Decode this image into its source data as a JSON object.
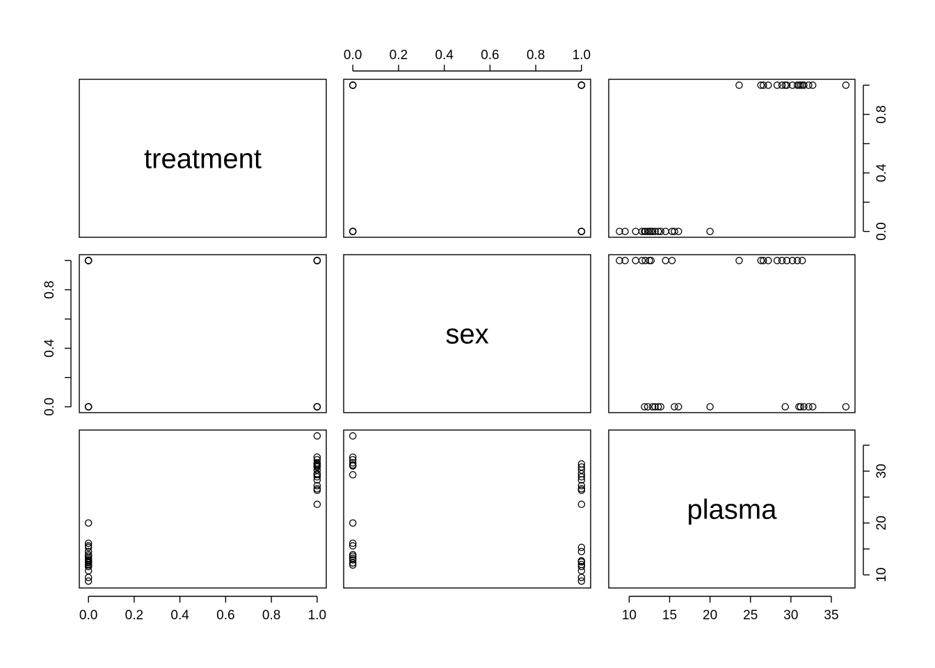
{
  "chart_data": {
    "type": "scatter",
    "title": "",
    "variables": [
      "treatment",
      "sex",
      "plasma"
    ],
    "ranges": {
      "treatment": [
        0,
        1
      ],
      "sex": [
        0,
        1
      ],
      "plasma": [
        8.6,
        36.8
      ]
    },
    "ticks": {
      "treatment": {
        "values": [
          0,
          0.2,
          0.4,
          0.6,
          0.8,
          1.0
        ],
        "labels": [
          "0.0",
          "0.2",
          "0.4",
          "0.6",
          "0.8",
          "1.0"
        ]
      },
      "sex": {
        "values": [
          0,
          0.2,
          0.4,
          0.6,
          0.8,
          1.0
        ],
        "labels": [
          "0.0",
          "0.2",
          "0.4",
          "0.6",
          "0.8",
          "1.0"
        ]
      },
      "sex_y": {
        "values": [
          0,
          0.2,
          0.4,
          0.6,
          0.8,
          1.0
        ],
        "labels": [
          "0.0",
          "",
          "0.4",
          "",
          "0.8",
          ""
        ]
      },
      "treatment_y": {
        "values": [
          0,
          0.2,
          0.4,
          0.6,
          0.8,
          1.0
        ],
        "labels": [
          "0.0",
          "",
          "0.4",
          "",
          "0.8",
          ""
        ]
      },
      "plasma_x": {
        "values": [
          10,
          15,
          20,
          25,
          30,
          35
        ],
        "labels": [
          "10",
          "15",
          "20",
          "25",
          "30",
          "35"
        ]
      },
      "plasma_y": {
        "values": [
          10,
          15,
          20,
          25,
          30,
          35
        ],
        "labels": [
          "10",
          "",
          "20",
          "",
          "30",
          ""
        ]
      }
    },
    "observations": [
      {
        "treatment": 0,
        "sex": 1,
        "plasma": 8.8
      },
      {
        "treatment": 0,
        "sex": 1,
        "plasma": 9.5
      },
      {
        "treatment": 0,
        "sex": 1,
        "plasma": 10.8
      },
      {
        "treatment": 0,
        "sex": 1,
        "plasma": 11.6
      },
      {
        "treatment": 0,
        "sex": 1,
        "plasma": 12.0
      },
      {
        "treatment": 0,
        "sex": 1,
        "plasma": 12.5
      },
      {
        "treatment": 0,
        "sex": 1,
        "plasma": 12.7
      },
      {
        "treatment": 0,
        "sex": 1,
        "plasma": 14.5
      },
      {
        "treatment": 0,
        "sex": 1,
        "plasma": 15.3
      },
      {
        "treatment": 0,
        "sex": 0,
        "plasma": 11.9
      },
      {
        "treatment": 0,
        "sex": 0,
        "plasma": 12.3
      },
      {
        "treatment": 0,
        "sex": 0,
        "plasma": 12.9
      },
      {
        "treatment": 0,
        "sex": 0,
        "plasma": 13.2
      },
      {
        "treatment": 0,
        "sex": 0,
        "plasma": 13.6
      },
      {
        "treatment": 0,
        "sex": 0,
        "plasma": 13.9
      },
      {
        "treatment": 0,
        "sex": 0,
        "plasma": 15.6
      },
      {
        "treatment": 0,
        "sex": 0,
        "plasma": 16.1
      },
      {
        "treatment": 0,
        "sex": 0,
        "plasma": 20.0
      },
      {
        "treatment": 1,
        "sex": 1,
        "plasma": 23.6
      },
      {
        "treatment": 1,
        "sex": 1,
        "plasma": 26.3
      },
      {
        "treatment": 1,
        "sex": 1,
        "plasma": 26.6
      },
      {
        "treatment": 1,
        "sex": 1,
        "plasma": 27.2
      },
      {
        "treatment": 1,
        "sex": 1,
        "plasma": 28.3
      },
      {
        "treatment": 1,
        "sex": 1,
        "plasma": 28.9
      },
      {
        "treatment": 1,
        "sex": 1,
        "plasma": 29.5
      },
      {
        "treatment": 1,
        "sex": 1,
        "plasma": 30.2
      },
      {
        "treatment": 1,
        "sex": 1,
        "plasma": 30.8
      },
      {
        "treatment": 1,
        "sex": 1,
        "plasma": 31.4
      },
      {
        "treatment": 1,
        "sex": 0,
        "plasma": 29.3
      },
      {
        "treatment": 1,
        "sex": 0,
        "plasma": 31.0
      },
      {
        "treatment": 1,
        "sex": 0,
        "plasma": 31.2
      },
      {
        "treatment": 1,
        "sex": 0,
        "plasma": 31.6
      },
      {
        "treatment": 1,
        "sex": 0,
        "plasma": 32.2
      },
      {
        "treatment": 1,
        "sex": 0,
        "plasma": 32.7
      },
      {
        "treatment": 1,
        "sex": 0,
        "plasma": 36.8
      }
    ]
  }
}
